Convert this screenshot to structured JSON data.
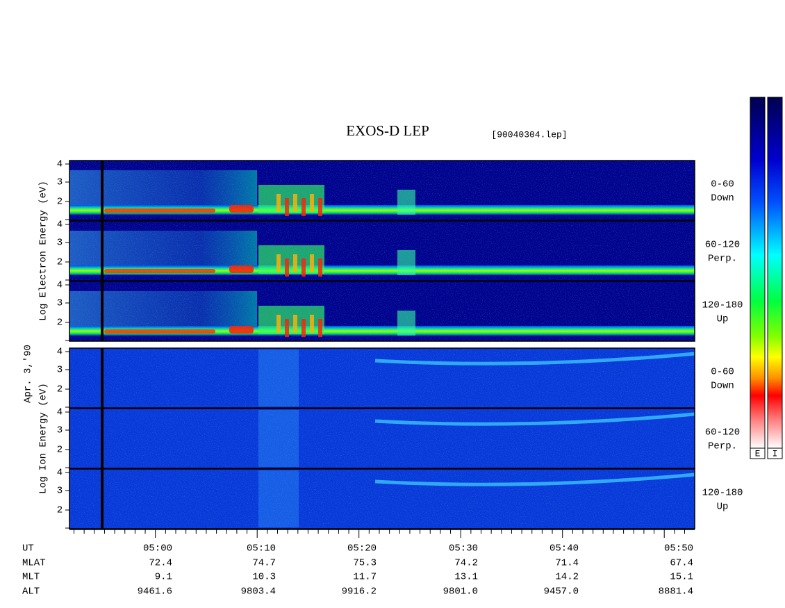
{
  "header": {
    "title": "EXOS-D LEP",
    "file": "[90040304.lep]"
  },
  "axis_labels": {
    "electron": "Log  Electron  Energy (eV)",
    "date": "Apr. 3,'90",
    "ion": "Log  Ion  Energy (eV)"
  },
  "panels": [
    {
      "species": "electron",
      "label_lines": [
        "0-60",
        "Down"
      ],
      "yticks": [
        "4",
        "3",
        "2"
      ]
    },
    {
      "species": "electron",
      "label_lines": [
        "60-120",
        "Perp."
      ],
      "yticks": [
        "4",
        "3",
        "2"
      ]
    },
    {
      "species": "electron",
      "label_lines": [
        "120-180",
        "Up"
      ],
      "yticks": [
        "4",
        "3",
        "2"
      ]
    },
    {
      "species": "ion",
      "label_lines": [
        "0-60",
        "Down"
      ],
      "yticks": [
        "4",
        "3",
        "2"
      ]
    },
    {
      "species": "ion",
      "label_lines": [
        "60-120",
        "Perp."
      ],
      "yticks": [
        "4",
        "3",
        "2"
      ]
    },
    {
      "species": "ion",
      "label_lines": [
        "120-180",
        "Up"
      ],
      "yticks": [
        "4",
        "3",
        "2"
      ]
    }
  ],
  "colorbar_labels": [
    "E",
    "I"
  ],
  "time_axis": {
    "rows": [
      {
        "label": "UT",
        "values": [
          "05:00",
          "05:10",
          "05:20",
          "05:30",
          "05:40",
          "05:50"
        ]
      },
      {
        "label": "MLAT",
        "values": [
          "72.4",
          "74.7",
          "75.3",
          "74.2",
          "71.4",
          "67.4"
        ]
      },
      {
        "label": "MLT",
        "values": [
          "9.1",
          "10.3",
          "11.7",
          "13.1",
          "14.2",
          "15.1"
        ]
      },
      {
        "label": "ALT",
        "values": [
          "9461.6",
          "9803.4",
          "9916.2",
          "9801.0",
          "9457.0",
          "8881.4"
        ]
      }
    ]
  }
}
